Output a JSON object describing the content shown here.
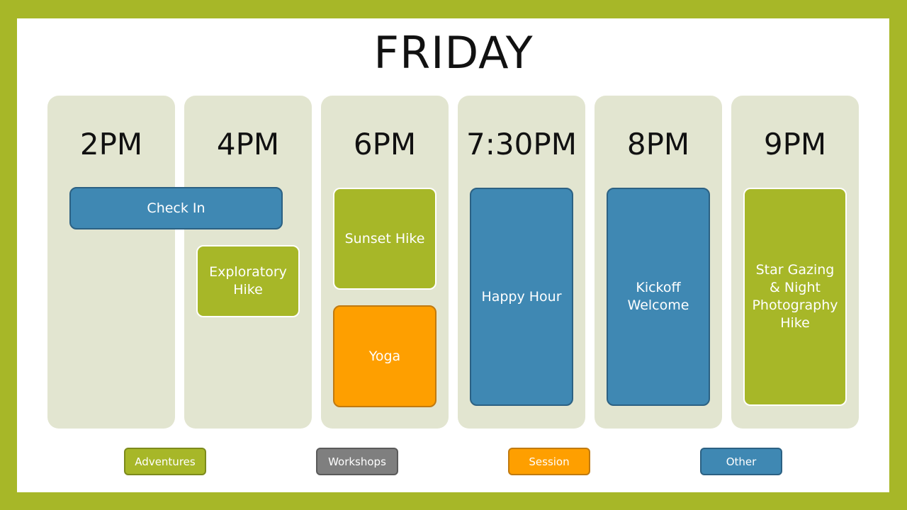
{
  "title": "FRIDAY",
  "colors": {
    "adventures": "#a7b728",
    "workshops": "#7f7f7f",
    "session": "#fe9f00",
    "other": "#3f88b3",
    "column": "#e2e5d0",
    "frame": "#a7b728"
  },
  "times": [
    "2PM",
    "4PM",
    "6PM",
    "7:30PM",
    "8PM",
    "9PM"
  ],
  "events": [
    {
      "label": "Check In",
      "category": "Other"
    },
    {
      "label": "Exploratory Hike",
      "category": "Adventures"
    },
    {
      "label": "Sunset Hike",
      "category": "Adventures"
    },
    {
      "label": "Yoga",
      "category": "Session"
    },
    {
      "label": "Happy Hour",
      "category": "Other"
    },
    {
      "label": "Kickoff Welcome",
      "category": "Other"
    },
    {
      "label": "Star Gazing & Night Photography Hike",
      "category": "Adventures"
    }
  ],
  "legend": [
    "Adventures",
    "Workshops",
    "Session",
    "Other"
  ]
}
